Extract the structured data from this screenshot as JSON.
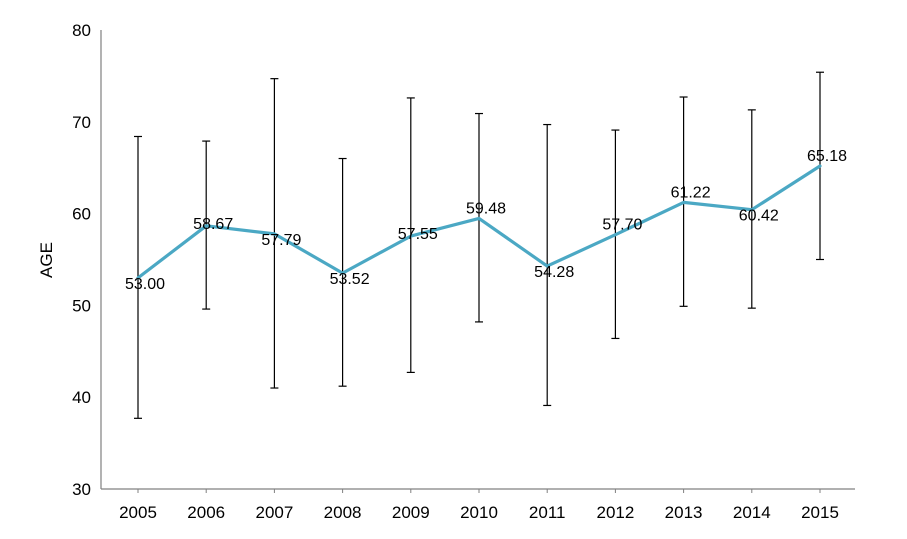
{
  "chart_data": {
    "type": "line",
    "title": "",
    "xlabel": "",
    "ylabel": "AGE",
    "ylim": [
      30,
      80
    ],
    "y_ticks": [
      "30",
      "40",
      "50",
      "60",
      "70",
      "80"
    ],
    "categories": [
      "2005",
      "2006",
      "2007",
      "2008",
      "2009",
      "2010",
      "2011",
      "2012",
      "2013",
      "2014",
      "2015"
    ],
    "series": [
      {
        "values": [
          53.0,
          58.67,
          57.79,
          53.52,
          57.55,
          59.48,
          54.28,
          57.7,
          61.22,
          60.42,
          65.18
        ],
        "labels": [
          "53.00",
          "58.67",
          "57.79",
          "53.52",
          "57.55",
          "59.48",
          "54.28",
          "57.70",
          "61.22",
          "60.42",
          "65.18"
        ],
        "error_low": [
          37.7,
          49.6,
          41.0,
          41.2,
          42.7,
          48.2,
          39.1,
          46.4,
          49.9,
          49.7,
          55.0
        ],
        "error_high": [
          68.4,
          67.9,
          74.7,
          66.0,
          72.6,
          70.9,
          69.7,
          69.1,
          72.7,
          71.3,
          75.4
        ],
        "color": "#4ba8c4"
      }
    ],
    "error_bar_color": "#000000",
    "axis_color": "#808080",
    "grid": false,
    "legend": "none"
  }
}
